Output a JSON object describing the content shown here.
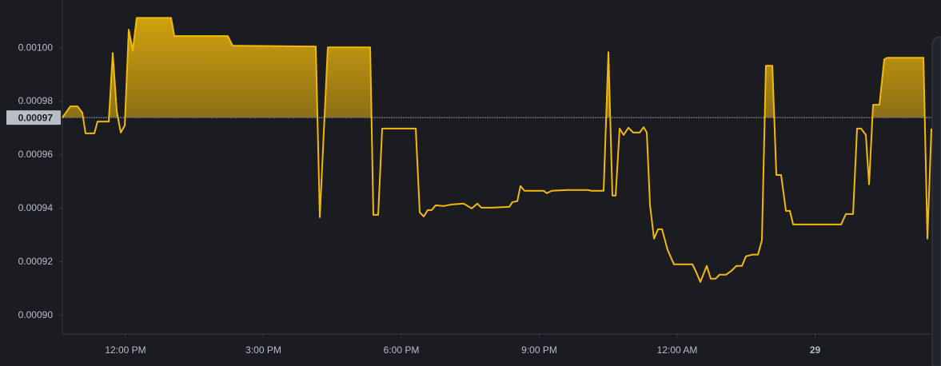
{
  "chart_data": {
    "type": "line",
    "series": [
      {
        "color": "#f0b90b",
        "x": [
          10.626,
          10.8,
          10.957,
          11.061,
          11.13,
          11.322,
          11.391,
          11.635,
          11.722,
          11.809,
          11.896,
          11.983,
          12.07,
          12.157,
          12.243,
          12.991,
          13.061,
          14.226,
          14.33,
          16.139,
          16.226,
          16.4,
          17.322,
          17.391,
          17.496,
          17.583,
          18.313,
          18.4,
          18.487,
          18.574,
          18.661,
          18.748,
          18.922,
          19.096,
          19.357,
          19.53,
          19.652,
          19.739,
          19.965,
          20.348,
          20.417,
          20.522,
          20.591,
          20.678,
          21.096,
          21.165,
          21.27,
          21.617,
          22.052,
          22.139,
          22.4,
          22.504,
          22.591,
          22.661,
          22.748,
          22.835,
          22.939,
          23.043,
          23.183,
          23.27,
          23.339,
          23.409,
          23.496,
          23.583,
          23.67,
          23.791,
          23.93,
          24.33,
          24.4,
          24.504,
          24.643,
          24.73,
          24.835,
          24.922,
          25.061,
          25.183,
          25.287,
          25.409,
          25.496,
          25.635,
          25.757,
          25.843,
          25.93,
          26.07,
          26.157,
          26.261,
          26.365,
          26.452,
          26.522,
          26.661,
          27.357,
          27.565,
          27.67,
          27.826,
          27.913,
          28.0,
          28.104,
          28.174,
          28.261,
          28.4,
          28.504,
          28.574,
          29.357,
          29.443,
          29.53
        ],
        "values": [
          0.000974,
          0.0009782,
          0.0009782,
          0.0009758,
          0.0009681,
          0.0009681,
          0.0009725,
          0.0009725,
          0.0009982,
          0.0009764,
          0.0009684,
          0.000971,
          0.0010069,
          0.0009991,
          0.0010113,
          0.0010113,
          0.0010045,
          0.0010045,
          0.0010009,
          0.0010006,
          0.0009367,
          0.0010003,
          0.0010003,
          0.0009376,
          0.0009376,
          0.0009699,
          0.0009699,
          0.0009385,
          0.000937,
          0.0009394,
          0.0009394,
          0.0009412,
          0.0009409,
          0.0009415,
          0.0009418,
          0.00094,
          0.0009418,
          0.0009403,
          0.0009403,
          0.0009406,
          0.0009424,
          0.0009427,
          0.0009484,
          0.0009466,
          0.0009466,
          0.0009457,
          0.0009466,
          0.0009469,
          0.0009469,
          0.0009466,
          0.0009466,
          0.0009985,
          0.0009448,
          0.0009448,
          0.0009699,
          0.0009675,
          0.0009702,
          0.0009684,
          0.0009684,
          0.0009704,
          0.0009684,
          0.0009412,
          0.0009287,
          0.0009322,
          0.0009322,
          0.0009245,
          0.0009191,
          0.0009191,
          0.0009167,
          0.0009125,
          0.0009185,
          0.0009137,
          0.0009137,
          0.0009152,
          0.0009152,
          0.0009167,
          0.0009185,
          0.0009185,
          0.0009221,
          0.0009227,
          0.0009227,
          0.0009281,
          0.0009934,
          0.0009934,
          0.0009525,
          0.0009525,
          0.0009391,
          0.0009391,
          0.000934,
          0.000934,
          0.000934,
          0.000934,
          0.0009379,
          0.0009379,
          0.0009699,
          0.0009699,
          0.0009675,
          0.000949,
          0.0009788,
          0.0009788,
          0.0009958,
          0.0009964,
          0.0009964,
          0.0009287,
          0.0009699
        ]
      }
    ],
    "baseline": {
      "value": 0.000974,
      "label": "0.00097"
    },
    "xlim": [
      10.626,
      29.53
    ],
    "xticks": [
      {
        "value": 12,
        "label": "12:00 PM"
      },
      {
        "value": 15,
        "label": "3:00 PM"
      },
      {
        "value": 18,
        "label": "6:00 PM"
      },
      {
        "value": 21,
        "label": "9:00 PM"
      },
      {
        "value": 24,
        "label": "12:00 AM"
      },
      {
        "value": 27,
        "label": "29"
      }
    ],
    "ylim": [
      0.000893,
      0.001018
    ],
    "yticks": [
      {
        "value": 0.0009,
        "label": "0.00090"
      },
      0.00092,
      0.00094,
      0.00096,
      0.00098,
      {
        "value": 0.001,
        "label": "0.00100"
      }
    ]
  }
}
